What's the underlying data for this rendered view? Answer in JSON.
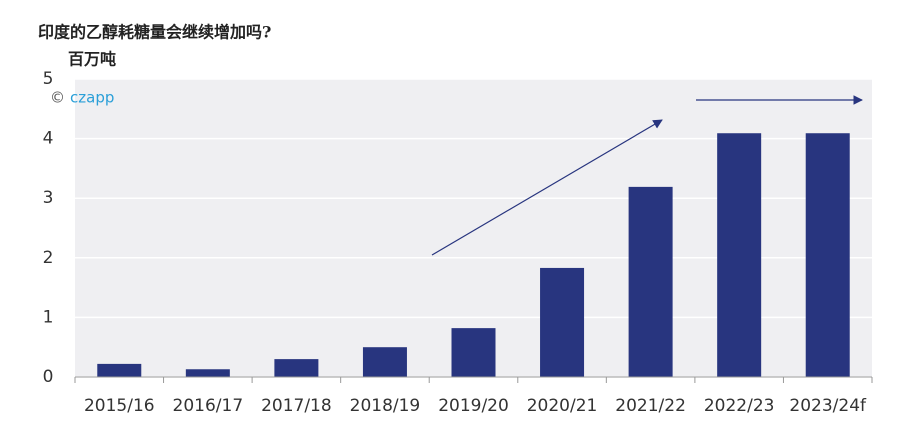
{
  "chart_data": {
    "type": "bar",
    "title": "印度的乙醇耗糖量会继续增加吗?",
    "y_label": "百万吨",
    "watermark": "czapp",
    "categories": [
      "2015/16",
      "2016/17",
      "2017/18",
      "2018/19",
      "2019/20",
      "2020/21",
      "2021/22",
      "2022/23",
      "2023/24f"
    ],
    "values": [
      0.22,
      0.13,
      0.3,
      0.5,
      0.82,
      1.83,
      3.19,
      4.09,
      4.09
    ],
    "color": "#28357f",
    "ylim": [
      0,
      5
    ],
    "yticks": [
      0,
      1,
      2,
      3,
      4,
      5
    ],
    "grid": true
  }
}
